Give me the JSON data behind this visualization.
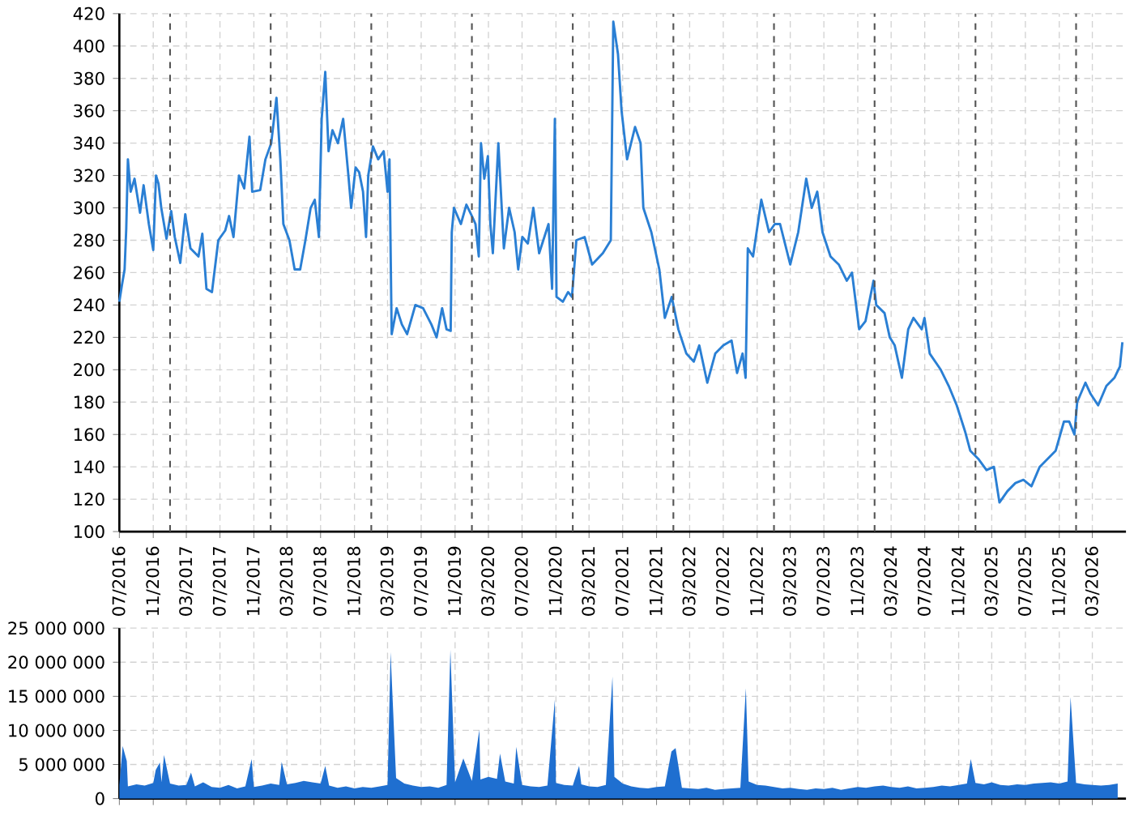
{
  "chart_data": [
    {
      "type": "line",
      "color": "#2a7fd4",
      "grid": true,
      "xlim": [
        "2016-07-01",
        "2026-07-01"
      ],
      "ylim": [
        100,
        420
      ],
      "yticks": [
        100,
        120,
        140,
        160,
        180,
        200,
        220,
        240,
        260,
        280,
        300,
        320,
        340,
        360,
        380,
        400,
        420
      ],
      "xticks": [
        {
          "value": "2016-07-01",
          "label": "07/2016"
        },
        {
          "value": "2016-11-01",
          "label": "11/2016"
        },
        {
          "value": "2017-03-01",
          "label": "03/2017"
        },
        {
          "value": "2017-07-01",
          "label": "07/2017"
        },
        {
          "value": "2017-11-01",
          "label": "11/2017"
        },
        {
          "value": "2018-03-01",
          "label": "03/2018"
        },
        {
          "value": "2018-07-01",
          "label": "07/2018"
        },
        {
          "value": "2018-11-01",
          "label": "11/2018"
        },
        {
          "value": "2019-03-01",
          "label": "03/2019"
        },
        {
          "value": "2019-07-01",
          "label": "07/2019"
        },
        {
          "value": "2019-11-01",
          "label": "11/2019"
        },
        {
          "value": "2020-03-01",
          "label": "03/2020"
        },
        {
          "value": "2020-07-01",
          "label": "07/2020"
        },
        {
          "value": "2020-11-01",
          "label": "11/2020"
        },
        {
          "value": "2021-03-01",
          "label": "03/2021"
        },
        {
          "value": "2021-07-01",
          "label": "07/2021"
        },
        {
          "value": "2021-11-01",
          "label": "11/2021"
        },
        {
          "value": "2022-03-01",
          "label": "03/2022"
        },
        {
          "value": "2022-07-01",
          "label": "07/2022"
        },
        {
          "value": "2022-11-01",
          "label": "11/2022"
        },
        {
          "value": "2023-03-01",
          "label": "03/2023"
        },
        {
          "value": "2023-07-01",
          "label": "07/2023"
        },
        {
          "value": "2023-11-01",
          "label": "11/2023"
        },
        {
          "value": "2024-03-01",
          "label": "03/2024"
        },
        {
          "value": "2024-07-01",
          "label": "07/2024"
        },
        {
          "value": "2024-11-01",
          "label": "11/2024"
        },
        {
          "value": "2025-03-01",
          "label": "03/2025"
        },
        {
          "value": "2025-07-01",
          "label": "07/2025"
        },
        {
          "value": "2025-11-01",
          "label": "11/2025"
        },
        {
          "value": "2026-03-01",
          "label": "03/2026"
        }
      ],
      "ref_lines": [
        {
          "axis": "x",
          "value": "2017-01-01",
          "color": "#555555",
          "line_style": "dashed"
        },
        {
          "axis": "x",
          "value": "2018-01-01",
          "color": "#555555",
          "line_style": "dashed"
        },
        {
          "axis": "x",
          "value": "2019-01-01",
          "color": "#555555",
          "line_style": "dashed"
        },
        {
          "axis": "x",
          "value": "2020-01-01",
          "color": "#555555",
          "line_style": "dashed"
        },
        {
          "axis": "x",
          "value": "2021-01-01",
          "color": "#555555",
          "line_style": "dashed"
        },
        {
          "axis": "x",
          "value": "2022-01-01",
          "color": "#555555",
          "line_style": "dashed"
        },
        {
          "axis": "x",
          "value": "2023-01-01",
          "color": "#555555",
          "line_style": "dashed"
        },
        {
          "axis": "x",
          "value": "2024-01-01",
          "color": "#555555",
          "line_style": "dashed"
        },
        {
          "axis": "x",
          "value": "2025-01-01",
          "color": "#555555",
          "line_style": "dashed"
        },
        {
          "axis": "x",
          "value": "2026-01-01",
          "color": "#555555",
          "line_style": "dashed"
        }
      ],
      "x": [
        "2016-07-01",
        "2016-07-10",
        "2016-07-20",
        "2016-07-26",
        "2016-08-01",
        "2016-08-11",
        "2016-08-25",
        "2016-09-14",
        "2016-09-27",
        "2016-10-16",
        "2016-11-01",
        "2016-11-11",
        "2016-11-20",
        "2016-11-30",
        "2016-12-19",
        "2017-01-05",
        "2017-01-18",
        "2017-02-07",
        "2017-02-25",
        "2017-03-16",
        "2017-04-14",
        "2017-04-28",
        "2017-05-13",
        "2017-06-02",
        "2017-06-25",
        "2017-07-20",
        "2017-08-03",
        "2017-08-19",
        "2017-09-08",
        "2017-09-27",
        "2017-10-16",
        "2017-10-26",
        "2017-11-24",
        "2017-12-13",
        "2018-01-03",
        "2018-01-22",
        "2018-02-05",
        "2018-02-16",
        "2018-03-10",
        "2018-03-29",
        "2018-04-18",
        "2018-05-07",
        "2018-05-26",
        "2018-06-10",
        "2018-06-25",
        "2018-07-05",
        "2018-07-18",
        "2018-07-30",
        "2018-08-13",
        "2018-09-02",
        "2018-09-21",
        "2018-10-10",
        "2018-10-20",
        "2018-11-05",
        "2018-11-18",
        "2018-12-02",
        "2018-12-13",
        "2018-12-21",
        "2019-01-07",
        "2019-01-26",
        "2019-02-15",
        "2019-03-01",
        "2019-03-08",
        "2019-03-16",
        "2019-04-03",
        "2019-04-22",
        "2019-05-11",
        "2019-06-10",
        "2019-07-08",
        "2019-08-07",
        "2019-08-26",
        "2019-09-15",
        "2019-10-01",
        "2019-10-16",
        "2019-10-20",
        "2019-10-28",
        "2019-11-22",
        "2019-12-12",
        "2020-01-01",
        "2020-01-14",
        "2020-01-26",
        "2020-02-03",
        "2020-02-15",
        "2020-02-28",
        "2020-03-08",
        "2020-03-17",
        "2020-04-06",
        "2020-04-26",
        "2020-05-15",
        "2020-06-04",
        "2020-06-17",
        "2020-07-02",
        "2020-07-22",
        "2020-08-11",
        "2020-09-01",
        "2020-10-05",
        "2020-10-18",
        "2020-10-28",
        "2020-11-03",
        "2020-11-26",
        "2020-12-15",
        "2020-12-29",
        "2021-01-14",
        "2021-02-13",
        "2021-03-12",
        "2021-04-20",
        "2021-05-19",
        "2021-05-28",
        "2021-06-14",
        "2021-06-27",
        "2021-07-17",
        "2021-08-15",
        "2021-09-04",
        "2021-09-14",
        "2021-10-13",
        "2021-11-11",
        "2021-12-01",
        "2021-12-26",
        "2022-01-19",
        "2022-02-17",
        "2022-03-16",
        "2022-04-05",
        "2022-05-04",
        "2022-06-02",
        "2022-07-01",
        "2022-07-31",
        "2022-08-20",
        "2022-09-09",
        "2022-09-20",
        "2022-09-28",
        "2022-10-17",
        "2022-11-16",
        "2022-12-14",
        "2023-01-04",
        "2023-01-23",
        "2023-03-01",
        "2023-03-30",
        "2023-04-28",
        "2023-05-18",
        "2023-06-07",
        "2023-06-26",
        "2023-07-25",
        "2023-08-24",
        "2023-09-22",
        "2023-10-11",
        "2023-11-06",
        "2023-11-29",
        "2023-12-28",
        "2024-01-07",
        "2024-02-06",
        "2024-02-25",
        "2024-03-14",
        "2024-04-09",
        "2024-05-02",
        "2024-05-21",
        "2024-06-20",
        "2024-06-30",
        "2024-07-19",
        "2024-08-28",
        "2024-09-26",
        "2024-10-25",
        "2024-11-24",
        "2024-12-13",
        "2025-01-11",
        "2025-02-10",
        "2025-03-09",
        "2025-03-29",
        "2025-04-27",
        "2025-05-26",
        "2025-06-24",
        "2025-07-23",
        "2025-08-22",
        "2025-09-20",
        "2025-10-19",
        "2025-11-18",
        "2025-12-07",
        "2025-12-26",
        "2026-01-05",
        "2026-02-04",
        "2026-02-23",
        "2026-03-22",
        "2026-04-21",
        "2026-05-20",
        "2026-06-09",
        "2026-06-18"
      ],
      "values": [
        242,
        252,
        262,
        287,
        330,
        310,
        318,
        297,
        314,
        290,
        274,
        320,
        315,
        300,
        281,
        298,
        282,
        266,
        296,
        275,
        270,
        284,
        250,
        248,
        280,
        286,
        295,
        282,
        320,
        312,
        344,
        310,
        311,
        330,
        340,
        368,
        330,
        290,
        280,
        262,
        262,
        280,
        300,
        305,
        282,
        355,
        384,
        335,
        348,
        340,
        355,
        320,
        300,
        325,
        322,
        310,
        282,
        320,
        338,
        330,
        335,
        310,
        330,
        222,
        238,
        228,
        222,
        240,
        238,
        228,
        220,
        238,
        225,
        224,
        285,
        300,
        290,
        302,
        295,
        290,
        270,
        340,
        318,
        332,
        290,
        272,
        340,
        275,
        300,
        285,
        262,
        282,
        278,
        300,
        272,
        290,
        250,
        355,
        245,
        242,
        248,
        245,
        280,
        282,
        265,
        272,
        280,
        415,
        395,
        360,
        330,
        350,
        340,
        300,
        285,
        262,
        232,
        245,
        225,
        210,
        205,
        215,
        192,
        210,
        215,
        218,
        198,
        210,
        195,
        275,
        270,
        305,
        285,
        290,
        290,
        265,
        285,
        318,
        300,
        310,
        285,
        270,
        265,
        255,
        260,
        225,
        230,
        255,
        240,
        235,
        220,
        215,
        195,
        225,
        232,
        225,
        232,
        210,
        200,
        190,
        178,
        162,
        150,
        145,
        138,
        140,
        118,
        125,
        130,
        132,
        128,
        140,
        145,
        150,
        168,
        168,
        160,
        180,
        192,
        185,
        178,
        190,
        195,
        202,
        217
      ]
    },
    {
      "type": "area",
      "color": "#1f6fd0",
      "grid": true,
      "tick_labels": "y",
      "xlim": [
        "2016-07-01",
        "2026-07-01"
      ],
      "ylim": [
        0,
        25000000
      ],
      "yticks": [
        0,
        {
          "value": 5000000,
          "label": "5 000 000"
        },
        {
          "value": 10000000,
          "label": "10 000 000"
        },
        {
          "value": 15000000,
          "label": "15 000 000"
        },
        {
          "value": 20000000,
          "label": "20 000 000"
        },
        {
          "value": 25000000,
          "label": "25 000 000"
        }
      ],
      "xticks": [
        {
          "value": "2016-07-01",
          "label": null
        },
        {
          "value": "2016-11-01",
          "label": null
        },
        {
          "value": "2017-03-01",
          "label": null
        },
        {
          "value": "2017-07-01",
          "label": null
        },
        {
          "value": "2017-11-01",
          "label": null
        },
        {
          "value": "2018-03-01",
          "label": null
        },
        {
          "value": "2018-07-01",
          "label": null
        },
        {
          "value": "2018-11-01",
          "label": null
        },
        {
          "value": "2019-03-01",
          "label": null
        },
        {
          "value": "2019-07-01",
          "label": null
        },
        {
          "value": "2019-11-01",
          "label": null
        },
        {
          "value": "2020-03-01",
          "label": null
        },
        {
          "value": "2020-07-01",
          "label": null
        },
        {
          "value": "2020-11-01",
          "label": null
        },
        {
          "value": "2021-03-01",
          "label": null
        },
        {
          "value": "2021-07-01",
          "label": null
        },
        {
          "value": "2021-11-01",
          "label": null
        },
        {
          "value": "2022-03-01",
          "label": null
        },
        {
          "value": "2022-07-01",
          "label": null
        },
        {
          "value": "2022-11-01",
          "label": null
        },
        {
          "value": "2023-03-01",
          "label": null
        },
        {
          "value": "2023-07-01",
          "label": null
        },
        {
          "value": "2023-11-01",
          "label": null
        },
        {
          "value": "2024-03-01",
          "label": null
        },
        {
          "value": "2024-07-01",
          "label": null
        },
        {
          "value": "2024-11-01",
          "label": null
        },
        {
          "value": "2025-03-01",
          "label": null
        },
        {
          "value": "2025-07-01",
          "label": null
        },
        {
          "value": "2025-11-01",
          "label": null
        },
        {
          "value": "2026-03-01",
          "label": null
        }
      ],
      "x": [
        "2016-07-01",
        "2016-07-13",
        "2016-07-28",
        "2016-08-01",
        "2016-09-01",
        "2016-10-01",
        "2016-11-01",
        "2016-11-10",
        "2016-11-25",
        "2016-12-01",
        "2016-12-10",
        "2017-01-01",
        "2017-02-01",
        "2017-03-01",
        "2017-03-18",
        "2017-04-01",
        "2017-05-01",
        "2017-06-01",
        "2017-07-01",
        "2017-08-01",
        "2017-09-01",
        "2017-10-01",
        "2017-10-24",
        "2017-11-01",
        "2017-12-01",
        "2018-01-01",
        "2018-02-01",
        "2018-02-10",
        "2018-03-01",
        "2018-04-01",
        "2018-05-01",
        "2018-06-01",
        "2018-07-01",
        "2018-07-18",
        "2018-08-01",
        "2018-09-01",
        "2018-10-01",
        "2018-11-01",
        "2018-12-01",
        "2019-01-01",
        "2019-02-01",
        "2019-03-01",
        "2019-03-12",
        "2019-04-01",
        "2019-05-01",
        "2019-06-01",
        "2019-07-01",
        "2019-08-01",
        "2019-09-01",
        "2019-10-01",
        "2019-10-15",
        "2019-11-01",
        "2019-12-01",
        "2020-01-01",
        "2020-01-28",
        "2020-02-01",
        "2020-03-01",
        "2020-04-01",
        "2020-04-12",
        "2020-05-01",
        "2020-06-01",
        "2020-06-10",
        "2020-07-01",
        "2020-08-01",
        "2020-09-01",
        "2020-10-01",
        "2020-10-28",
        "2020-11-01",
        "2020-12-01",
        "2021-01-01",
        "2021-01-24",
        "2021-02-01",
        "2021-03-01",
        "2021-04-01",
        "2021-05-01",
        "2021-05-25",
        "2021-06-01",
        "2021-07-01",
        "2021-08-01",
        "2021-09-01",
        "2021-10-01",
        "2021-11-01",
        "2021-12-01",
        "2021-12-25",
        "2022-01-09",
        "2022-02-01",
        "2022-03-01",
        "2022-04-01",
        "2022-05-01",
        "2022-06-01",
        "2022-07-01",
        "2022-08-01",
        "2022-09-01",
        "2022-09-21",
        "2022-10-01",
        "2022-11-01",
        "2022-12-01",
        "2023-01-01",
        "2023-02-01",
        "2023-03-01",
        "2023-04-01",
        "2023-05-01",
        "2023-06-01",
        "2023-07-01",
        "2023-08-01",
        "2023-09-01",
        "2023-10-01",
        "2023-11-01",
        "2023-12-01",
        "2024-01-01",
        "2024-02-01",
        "2024-03-01",
        "2024-04-01",
        "2024-05-01",
        "2024-06-01",
        "2024-07-01",
        "2024-08-01",
        "2024-09-01",
        "2024-10-01",
        "2024-11-01",
        "2024-12-01",
        "2024-12-15",
        "2025-01-01",
        "2025-02-01",
        "2025-03-01",
        "2025-04-01",
        "2025-05-01",
        "2025-06-01",
        "2025-07-01",
        "2025-08-01",
        "2025-09-01",
        "2025-10-01",
        "2025-11-01",
        "2025-12-01",
        "2025-12-12",
        "2026-01-01",
        "2026-02-01",
        "2026-03-01",
        "2026-04-01",
        "2026-05-01",
        "2026-06-01"
      ],
      "values": [
        2000000,
        7700000,
        5500000,
        1800000,
        2100000,
        1900000,
        2300000,
        4200000,
        5300000,
        2400000,
        6400000,
        2200000,
        1900000,
        2000000,
        3800000,
        1800000,
        2400000,
        1700000,
        1600000,
        2000000,
        1500000,
        1800000,
        5800000,
        1700000,
        1900000,
        2200000,
        2000000,
        5400000,
        2100000,
        2300000,
        2600000,
        2400000,
        2200000,
        4800000,
        1900000,
        1600000,
        1800000,
        1500000,
        1700000,
        1600000,
        1800000,
        2000000,
        21500000,
        3000000,
        2200000,
        1900000,
        1700000,
        1800000,
        1600000,
        2000000,
        21800000,
        2400000,
        5900000,
        2600000,
        10100000,
        2800000,
        3200000,
        2900000,
        6600000,
        2500000,
        2200000,
        7600000,
        2000000,
        1800000,
        1700000,
        1900000,
        14500000,
        2300000,
        2000000,
        1900000,
        4800000,
        2100000,
        1800000,
        1700000,
        2000000,
        17900000,
        3200000,
        2200000,
        1800000,
        1600000,
        1500000,
        1700000,
        1800000,
        6900000,
        7400000,
        1600000,
        1500000,
        1400000,
        1600000,
        1300000,
        1400000,
        1500000,
        1600000,
        16200000,
        2500000,
        2000000,
        1900000,
        1700000,
        1500000,
        1600000,
        1400000,
        1300000,
        1500000,
        1400000,
        1600000,
        1300000,
        1500000,
        1700000,
        1600000,
        1800000,
        1900000,
        1700000,
        1600000,
        1800000,
        1500000,
        1600000,
        1700000,
        1900000,
        1800000,
        2000000,
        2200000,
        5800000,
        2300000,
        2100000,
        2400000,
        2000000,
        1900000,
        2100000,
        2000000,
        2200000,
        2300000,
        2400000,
        2200000,
        2500000,
        14900000,
        2300000,
        2100000,
        2000000,
        1900000,
        2000000,
        2200000
      ]
    }
  ]
}
